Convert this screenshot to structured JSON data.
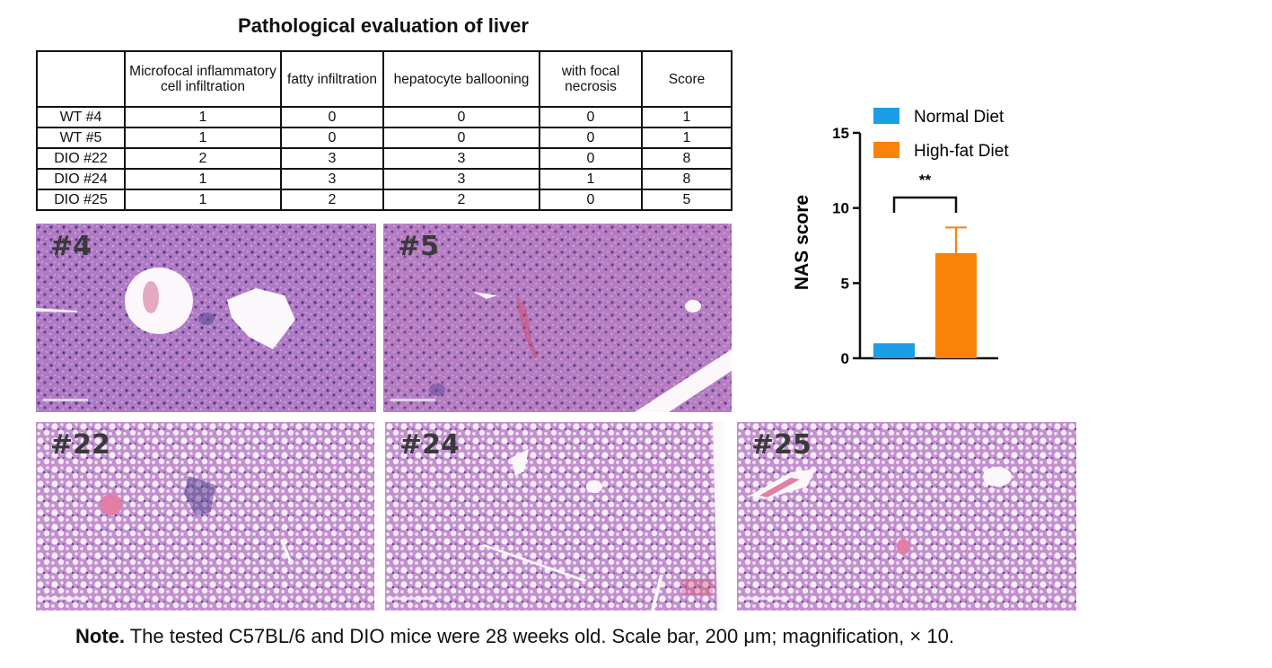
{
  "title": "Pathological evaluation of liver",
  "table": {
    "headers": [
      "",
      "Microfocal inflammatory cell infiltration",
      "fatty infiltration",
      "hepatocyte ballooning",
      "with focal necrosis",
      "Score"
    ],
    "rows": [
      [
        "WT #4",
        "1",
        "0",
        "0",
        "0",
        "1"
      ],
      [
        "WT #5",
        "1",
        "0",
        "0",
        "0",
        "1"
      ],
      [
        "DIO #22",
        "2",
        "3",
        "3",
        "0",
        "8"
      ],
      [
        "DIO #24",
        "1",
        "3",
        "3",
        "1",
        "8"
      ],
      [
        "DIO #25",
        "1",
        "2",
        "2",
        "0",
        "5"
      ]
    ]
  },
  "images": [
    {
      "label": "#4"
    },
    {
      "label": "#5"
    },
    {
      "label": "#22"
    },
    {
      "label": "#24"
    },
    {
      "label": "#25"
    }
  ],
  "chart_data": {
    "type": "bar",
    "categories": [
      "Normal Diet",
      "High-fat Diet"
    ],
    "values": [
      1,
      7
    ],
    "errors": [
      0,
      1.7
    ],
    "colors": [
      "#1a9ee5",
      "#fb8209"
    ],
    "title": "",
    "xlabel": "",
    "ylabel": "NAS score",
    "ylim": [
      0,
      15
    ],
    "yticks": [
      0,
      5,
      10,
      15
    ],
    "legend": [
      "Normal Diet",
      "High-fat Diet"
    ],
    "legend_position": "top",
    "significance": "**",
    "grid": false
  },
  "note": {
    "label": "Note.",
    "text": "The tested C57BL/6 and DIO mice were 28 weeks old. Scale bar, 200 μm; magnification, × 10."
  }
}
